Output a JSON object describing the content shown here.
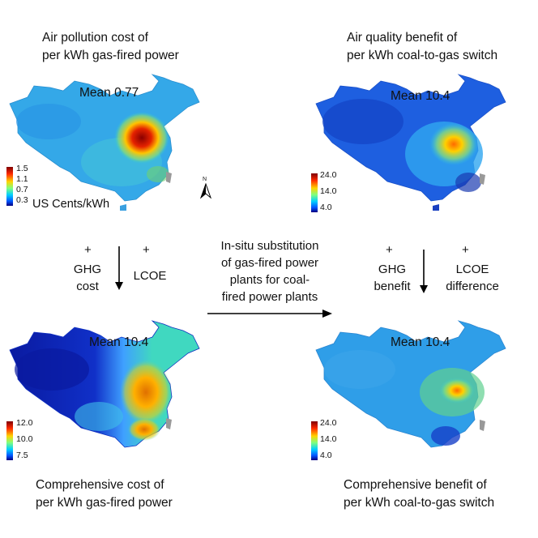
{
  "panels": {
    "top_left": {
      "title_line1": "Air pollution cost of",
      "title_line2": "per kWh gas-fired power",
      "mean": "Mean 0.77",
      "colorbar_ticks": [
        "1.5",
        "1.1",
        "0.7",
        "0.3"
      ],
      "unit": "US Cents/kWh",
      "north_label": "N"
    },
    "top_right": {
      "title_line1": "Air quality benefit of",
      "title_line2": "per kWh coal-to-gas switch",
      "mean": "Mean 10.4",
      "colorbar_ticks": [
        "24.0",
        "14.0",
        "4.0"
      ]
    },
    "bottom_left": {
      "title_line1": "Comprehensive cost of",
      "title_line2": "per kWh gas-fired power",
      "mean": "Mean 10.4",
      "colorbar_ticks": [
        "12.0",
        "10.0",
        "7.5"
      ]
    },
    "bottom_right": {
      "title_line1": "Comprehensive benefit of",
      "title_line2": "per kWh coal-to-gas switch",
      "mean": "Mean 10.4",
      "colorbar_ticks": [
        "24.0",
        "14.0",
        "4.0"
      ]
    }
  },
  "left_flow": {
    "plus1": "+",
    "plus2": "+",
    "label1_line1": "GHG",
    "label1_line2": "cost",
    "label2": "LCOE"
  },
  "right_flow": {
    "plus1": "+",
    "plus2": "+",
    "label1_line1": "GHG",
    "label1_line2": "benefit",
    "label2_line1": "LCOE",
    "label2_line2": "difference"
  },
  "center_text": {
    "line1": "In-situ substitution",
    "line2": "of gas-fired power",
    "line3": "plants for coal-",
    "line4": "fired power plants"
  }
}
